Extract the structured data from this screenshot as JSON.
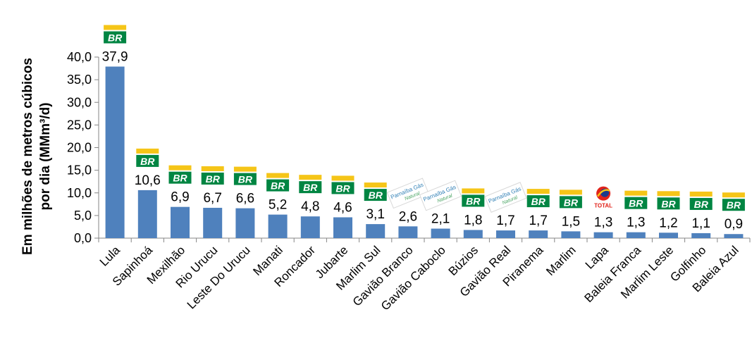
{
  "chart_data": {
    "type": "bar",
    "title": "",
    "ylabel_line1": "Em milhões de metros cúbicos",
    "ylabel_line2": "por dia (MMm³/d)",
    "xlabel": "",
    "ylim": [
      0,
      40
    ],
    "ytick_labels": [
      "0,0",
      "5,0",
      "10,0",
      "15,0",
      "20,0",
      "25,0",
      "30,0",
      "35,0",
      "40,0"
    ],
    "bar_color": "#4f81bd",
    "categories": [
      "Lula",
      "Sapinhoá",
      "Mexilhão",
      "Rio Urucu",
      "Leste Do Urucu",
      "Manati",
      "Roncador",
      "Jubarte",
      "Marlim Sul",
      "Gavião Branco",
      "Gavião Caboclo",
      "Búzios",
      "Gavião Real",
      "Piranema",
      "Marlim",
      "Lapa",
      "Baleia Franca",
      "Marlim Leste",
      "Golfinho",
      "Baleia Azul"
    ],
    "values": [
      37.9,
      10.6,
      6.9,
      6.7,
      6.6,
      5.2,
      4.8,
      4.6,
      3.1,
      2.6,
      2.1,
      1.8,
      1.7,
      1.7,
      1.5,
      1.3,
      1.3,
      1.2,
      1.1,
      0.9
    ],
    "value_labels": [
      "37,9",
      "10,6",
      "6,9",
      "6,7",
      "6,6",
      "5,2",
      "4,8",
      "4,6",
      "3,1",
      "2,6",
      "2,1",
      "1,8",
      "1,7",
      "1,7",
      "1,5",
      "1,3",
      "1,3",
      "1,2",
      "1,1",
      "0,9"
    ],
    "operators": [
      "petrobras",
      "petrobras",
      "petrobras",
      "petrobras",
      "petrobras",
      "petrobras",
      "petrobras",
      "petrobras",
      "petrobras",
      "parnaiba-gas",
      "parnaiba-gas",
      "petrobras",
      "parnaiba-gas",
      "petrobras",
      "petrobras",
      "total",
      "petrobras",
      "petrobras",
      "petrobras",
      "petrobras"
    ],
    "logos": {
      "petrobras": {
        "text": "BR",
        "green": "#008542",
        "yellow": "#f5c518"
      },
      "parnaiba-gas": {
        "text": "Parnaíba Gás",
        "subtext": "Natural",
        "color": "#2f7fb5"
      },
      "total": {
        "text": "TOTAL",
        "red": "#e2231a",
        "blue": "#1a3b8c"
      }
    }
  }
}
